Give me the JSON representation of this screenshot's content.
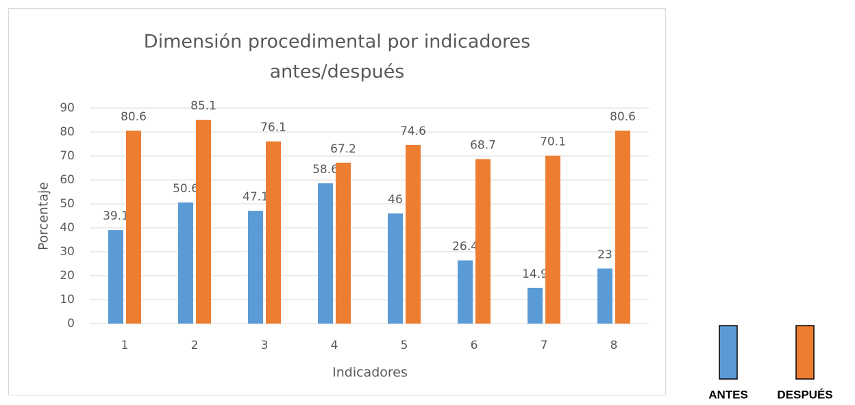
{
  "chart_data": {
    "type": "bar",
    "title": [
      "Dimensión procedimental por indicadores",
      "antes/después"
    ],
    "x_label": "Indicadores",
    "y_label": "Porcentaje",
    "categories": [
      "1",
      "2",
      "3",
      "4",
      "5",
      "6",
      "7",
      "8"
    ],
    "series": [
      {
        "name": "ANTES",
        "color": "#5b9bd5",
        "values": [
          39.1,
          50.6,
          47.1,
          58.6,
          46,
          26.4,
          14.9,
          23
        ]
      },
      {
        "name": "DESPUÉS",
        "color": "#ed7d31",
        "values": [
          80.6,
          85.1,
          76.1,
          67.2,
          74.6,
          68.7,
          70.1,
          80.6
        ]
      }
    ],
    "ylim": [
      0,
      90
    ],
    "yticks": [
      0,
      10,
      20,
      30,
      40,
      50,
      60,
      70,
      80,
      90
    ],
    "grid": true,
    "legend": "right"
  }
}
